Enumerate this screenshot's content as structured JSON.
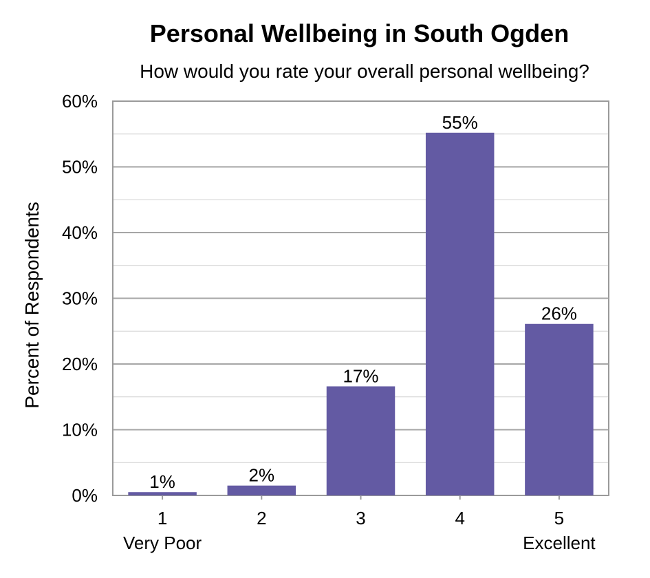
{
  "chart_data": {
    "type": "bar",
    "title": "Personal Wellbeing in South Ogden",
    "subtitle": "How would you rate your overall personal wellbeing?",
    "ylabel": "Percent of Respondents",
    "xlabel": "",
    "categories": [
      "1",
      "2",
      "3",
      "4",
      "5"
    ],
    "category_sublabels": [
      "Very Poor",
      "",
      "",
      "",
      "Excellent"
    ],
    "values": [
      0.5,
      1.5,
      16.6,
      55.2,
      26.1
    ],
    "data_labels": [
      "1%",
      "2%",
      "17%",
      "55%",
      "26%"
    ],
    "ylim": [
      0,
      60
    ],
    "yticks": [
      0,
      10,
      20,
      30,
      40,
      50,
      60
    ],
    "ytick_labels": [
      "0%",
      "10%",
      "20%",
      "30%",
      "40%",
      "50%",
      "60%"
    ],
    "grid": true,
    "legend": "none",
    "colors": {
      "bar": "#635aa3",
      "grid": "#a6a6a6",
      "axis": "#9a9a9a"
    }
  }
}
